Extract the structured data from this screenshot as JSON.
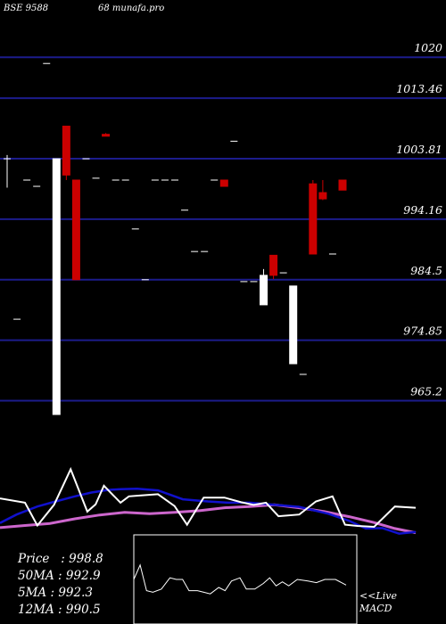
{
  "header": {
    "ticker": "BSE 9588",
    "brand": "68 munafa.pro"
  },
  "stats": [
    {
      "label": "Price",
      "value": "998.8"
    },
    {
      "label": "50MA",
      "value": "992.9"
    },
    {
      "label": "5MA",
      "value": "992.3"
    },
    {
      "label": "12MA",
      "value": "990.5"
    }
  ],
  "live_label": "<<Live",
  "macd_label": "MACD",
  "colors": {
    "up": "#ffffff",
    "down": "#cc0000",
    "grid": "#1c1c8c",
    "ma_blue": "#1111cc",
    "ma_magenta": "#cc66cc"
  },
  "chart_data": {
    "type": "candlestick",
    "y_ticks": [
      1020,
      1013.46,
      1003.81,
      994.16,
      984.5,
      974.85,
      965.2
    ],
    "ylim": [
      962,
      1026
    ],
    "candles": [
      {
        "o": 1003.8,
        "h": 1004.4,
        "l": 999.2,
        "c": 1003.8
      },
      {
        "o": 978.2,
        "h": 978.2,
        "l": 978.2,
        "c": 978.2
      },
      {
        "o": 1000.4,
        "h": 1000.4,
        "l": 1000.4,
        "c": 1000.4
      },
      {
        "o": 999.4,
        "h": 999.4,
        "l": 999.4,
        "c": 999.4
      },
      {
        "o": 1019.0,
        "h": 1019.0,
        "l": 1019.0,
        "c": 1019.0
      },
      {
        "o": 963.0,
        "h": 1003.8,
        "l": 963.0,
        "c": 1003.8
      },
      {
        "o": 1009.0,
        "h": 1009.0,
        "l": 1000.4,
        "c": 1001.2
      },
      {
        "o": 1000.4,
        "h": 1000.4,
        "l": 984.5,
        "c": 984.5
      },
      {
        "o": 1003.8,
        "h": 1003.8,
        "l": 1003.8,
        "c": 1003.8
      },
      {
        "o": 1000.7,
        "h": 1000.7,
        "l": 1000.7,
        "c": 1000.7
      },
      {
        "o": 1007.7,
        "h": 1007.9,
        "l": 1007.4,
        "c": 1007.4
      },
      {
        "o": 1000.4,
        "h": 1000.4,
        "l": 1000.4,
        "c": 1000.4
      },
      {
        "o": 1000.4,
        "h": 1000.4,
        "l": 1000.4,
        "c": 1000.4
      },
      {
        "o": 992.6,
        "h": 992.6,
        "l": 992.6,
        "c": 992.6
      },
      {
        "o": 984.5,
        "h": 984.5,
        "l": 984.5,
        "c": 984.5
      },
      {
        "o": 1000.4,
        "h": 1000.4,
        "l": 1000.4,
        "c": 1000.4
      },
      {
        "o": 1000.4,
        "h": 1000.4,
        "l": 1000.4,
        "c": 1000.4
      },
      {
        "o": 1000.4,
        "h": 1000.4,
        "l": 1000.4,
        "c": 1000.4
      },
      {
        "o": 995.6,
        "h": 995.6,
        "l": 995.6,
        "c": 995.6
      },
      {
        "o": 989.0,
        "h": 989.0,
        "l": 989.0,
        "c": 989.0
      },
      {
        "o": 989.0,
        "h": 989.0,
        "l": 989.0,
        "c": 989.0
      },
      {
        "o": 1000.4,
        "h": 1000.4,
        "l": 1000.4,
        "c": 1000.4
      },
      {
        "o": 1000.4,
        "h": 1000.4,
        "l": 999.4,
        "c": 999.4
      },
      {
        "o": 1006.6,
        "h": 1006.6,
        "l": 1006.6,
        "c": 1006.6
      },
      {
        "o": 984.2,
        "h": 984.2,
        "l": 984.2,
        "c": 984.2
      },
      {
        "o": 984.2,
        "h": 984.2,
        "l": 984.2,
        "c": 984.2
      },
      {
        "o": 980.5,
        "h": 986.2,
        "l": 980.5,
        "c": 985.2
      },
      {
        "o": 988.4,
        "h": 988.4,
        "l": 984.6,
        "c": 985.2
      },
      {
        "o": 985.6,
        "h": 985.6,
        "l": 985.6,
        "c": 985.6
      },
      {
        "o": 971.1,
        "h": 983.5,
        "l": 971.1,
        "c": 983.5
      },
      {
        "o": 969.4,
        "h": 969.4,
        "l": 969.4,
        "c": 969.4
      },
      {
        "o": 999.8,
        "h": 1000.4,
        "l": 988.6,
        "c": 988.6
      },
      {
        "o": 998.4,
        "h": 1000.4,
        "l": 997.2,
        "c": 997.4
      },
      {
        "o": 988.6,
        "h": 988.6,
        "l": 988.6,
        "c": 988.6
      },
      {
        "o": 1000.4,
        "h": 1000.4,
        "l": 998.8,
        "c": 998.8
      }
    ],
    "ma_blue": [
      {
        "t": 0,
        "v": -0.72
      },
      {
        "t": 0.04,
        "v": -0.52
      },
      {
        "t": 0.09,
        "v": -0.33
      },
      {
        "t": 0.13,
        "v": -0.22
      },
      {
        "t": 0.18,
        "v": -0.09
      },
      {
        "t": 0.22,
        "v": 0.0
      },
      {
        "t": 0.26,
        "v": 0.06
      },
      {
        "t": 0.29,
        "v": 0.08
      },
      {
        "t": 0.33,
        "v": 0.09
      },
      {
        "t": 0.38,
        "v": 0.05
      },
      {
        "t": 0.44,
        "v": -0.16
      },
      {
        "t": 0.5,
        "v": -0.21
      },
      {
        "t": 0.55,
        "v": -0.24
      },
      {
        "t": 0.6,
        "v": -0.24
      },
      {
        "t": 0.66,
        "v": -0.29
      },
      {
        "t": 0.72,
        "v": -0.34
      },
      {
        "t": 0.79,
        "v": -0.5
      },
      {
        "t": 0.84,
        "v": -0.67
      },
      {
        "t": 0.88,
        "v": -0.85
      },
      {
        "t": 0.92,
        "v": -0.84
      },
      {
        "t": 0.96,
        "v": -0.97
      },
      {
        "t": 1.0,
        "v": -0.93
      }
    ],
    "ma_magenta": [
      {
        "t": 0,
        "v": -0.83
      },
      {
        "t": 0.06,
        "v": -0.78
      },
      {
        "t": 0.12,
        "v": -0.73
      },
      {
        "t": 0.18,
        "v": -0.62
      },
      {
        "t": 0.24,
        "v": -0.53
      },
      {
        "t": 0.3,
        "v": -0.47
      },
      {
        "t": 0.36,
        "v": -0.5
      },
      {
        "t": 0.42,
        "v": -0.47
      },
      {
        "t": 0.48,
        "v": -0.43
      },
      {
        "t": 0.54,
        "v": -0.36
      },
      {
        "t": 0.6,
        "v": -0.33
      },
      {
        "t": 0.66,
        "v": -0.29
      },
      {
        "t": 0.72,
        "v": -0.36
      },
      {
        "t": 0.78,
        "v": -0.45
      },
      {
        "t": 0.84,
        "v": -0.57
      },
      {
        "t": 0.9,
        "v": -0.71
      },
      {
        "t": 0.95,
        "v": -0.85
      },
      {
        "t": 1.0,
        "v": -0.95
      }
    ],
    "ma_white": [
      {
        "t": 0,
        "v": -0.14
      },
      {
        "t": 0.06,
        "v": -0.24
      },
      {
        "t": 0.09,
        "v": -0.78
      },
      {
        "t": 0.13,
        "v": -0.29
      },
      {
        "t": 0.17,
        "v": 0.55
      },
      {
        "t": 0.21,
        "v": -0.45
      },
      {
        "t": 0.23,
        "v": -0.28
      },
      {
        "t": 0.25,
        "v": 0.16
      },
      {
        "t": 0.29,
        "v": -0.24
      },
      {
        "t": 0.31,
        "v": -0.09
      },
      {
        "t": 0.34,
        "v": -0.07
      },
      {
        "t": 0.38,
        "v": -0.04
      },
      {
        "t": 0.42,
        "v": -0.32
      },
      {
        "t": 0.45,
        "v": -0.76
      },
      {
        "t": 0.49,
        "v": -0.12
      },
      {
        "t": 0.54,
        "v": -0.12
      },
      {
        "t": 0.58,
        "v": -0.23
      },
      {
        "t": 0.61,
        "v": -0.29
      },
      {
        "t": 0.64,
        "v": -0.24
      },
      {
        "t": 0.67,
        "v": -0.56
      },
      {
        "t": 0.72,
        "v": -0.52
      },
      {
        "t": 0.76,
        "v": -0.21
      },
      {
        "t": 0.8,
        "v": -0.09
      },
      {
        "t": 0.83,
        "v": -0.76
      },
      {
        "t": 0.86,
        "v": -0.79
      },
      {
        "t": 0.9,
        "v": -0.81
      },
      {
        "t": 0.95,
        "v": -0.33
      },
      {
        "t": 1.0,
        "v": -0.36
      }
    ],
    "macd_line": [
      {
        "t": 0,
        "v": 0.5
      },
      {
        "t": 0.03,
        "v": 0.68
      },
      {
        "t": 0.06,
        "v": 0.36
      },
      {
        "t": 0.09,
        "v": 0.34
      },
      {
        "t": 0.13,
        "v": 0.38
      },
      {
        "t": 0.17,
        "v": 0.52
      },
      {
        "t": 0.2,
        "v": 0.5
      },
      {
        "t": 0.23,
        "v": 0.5
      },
      {
        "t": 0.26,
        "v": 0.36
      },
      {
        "t": 0.3,
        "v": 0.36
      },
      {
        "t": 0.33,
        "v": 0.34
      },
      {
        "t": 0.36,
        "v": 0.32
      },
      {
        "t": 0.4,
        "v": 0.4
      },
      {
        "t": 0.43,
        "v": 0.36
      },
      {
        "t": 0.46,
        "v": 0.48
      },
      {
        "t": 0.5,
        "v": 0.52
      },
      {
        "t": 0.53,
        "v": 0.38
      },
      {
        "t": 0.57,
        "v": 0.38
      },
      {
        "t": 0.61,
        "v": 0.45
      },
      {
        "t": 0.64,
        "v": 0.52
      },
      {
        "t": 0.67,
        "v": 0.42
      },
      {
        "t": 0.7,
        "v": 0.47
      },
      {
        "t": 0.73,
        "v": 0.42
      },
      {
        "t": 0.77,
        "v": 0.5
      },
      {
        "t": 0.82,
        "v": 0.48
      },
      {
        "t": 0.86,
        "v": 0.46
      },
      {
        "t": 0.9,
        "v": 0.5
      },
      {
        "t": 0.95,
        "v": 0.5
      },
      {
        "t": 1.0,
        "v": 0.43
      }
    ]
  }
}
